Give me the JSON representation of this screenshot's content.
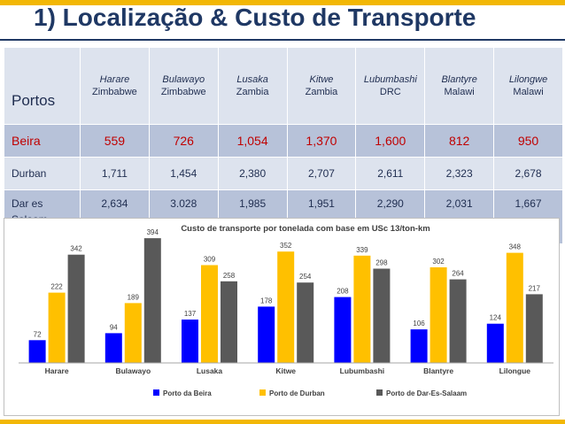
{
  "slide": {
    "title": "1) Localização & Custo de Transporte",
    "accent_color": "#f2b705",
    "title_color": "#1f3864"
  },
  "table": {
    "corner_label": "Portos",
    "columns": [
      {
        "city": "Harare",
        "country": "Zimbabwe"
      },
      {
        "city": "Bulawayo",
        "country": "Zimbabwe"
      },
      {
        "city": "Lusaka",
        "country": "Zambia"
      },
      {
        "city": "Kitwe",
        "country": "Zambia"
      },
      {
        "city": "Lubumbashi",
        "country": "DRC"
      },
      {
        "city": "Blantyre",
        "country": "Malawi"
      },
      {
        "city": "Lilongwe",
        "country": "Malawi"
      }
    ],
    "rows": [
      {
        "port": "Beira",
        "values": [
          "559",
          "726",
          "1,054",
          "1,370",
          "1,600",
          "812",
          "950"
        ]
      },
      {
        "port": "Durban",
        "values": [
          "1,711",
          "1,454",
          "2,380",
          "2,707",
          "2,611",
          "2,323",
          "2,678"
        ]
      },
      {
        "port_line1": "Dar es",
        "port_line2": "Salaam",
        "values": [
          "2,634",
          "3.028",
          "1,985",
          "1,951",
          "2,290",
          "2,031",
          "1,667"
        ]
      }
    ]
  },
  "chart_data": {
    "type": "bar",
    "title": "Custo de transporte por tonelada com base em USc 13/ton-km",
    "categories": [
      "Harare",
      "Bulawayo",
      "Lusaka",
      "Kitwe",
      "Lubumbashi",
      "Blantyre",
      "Lilongue"
    ],
    "series": [
      {
        "name": "Porto da Beira",
        "color": "#0000ff",
        "values": [
          72,
          94,
          137,
          178,
          208,
          106,
          124
        ]
      },
      {
        "name": "Porto de Durban",
        "color": "#ffc000",
        "values": [
          222,
          189,
          309,
          352,
          339,
          302,
          348
        ]
      },
      {
        "name": "Porto de Dar-Es-Salaam",
        "color": "#595959",
        "values": [
          342,
          394,
          258,
          254,
          298,
          264,
          217
        ]
      }
    ],
    "ylim": [
      0,
      400
    ],
    "grid": false,
    "legend": "bottom"
  }
}
